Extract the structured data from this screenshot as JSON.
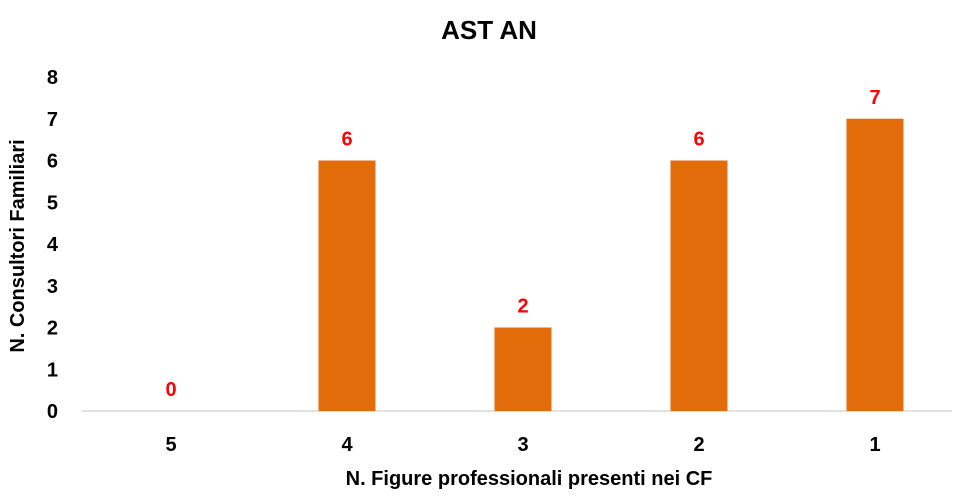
{
  "chart_data": {
    "type": "bar",
    "title": "AST AN",
    "xlabel": "N. Figure professionali presenti nei CF",
    "ylabel": "N. Consultori Familiari",
    "categories": [
      "5",
      "4",
      "3",
      "2",
      "1"
    ],
    "values": [
      0,
      6,
      2,
      6,
      7
    ],
    "data_labels": [
      "0",
      "6",
      "2",
      "6",
      "7"
    ],
    "ylim": [
      0,
      8
    ],
    "yticks": [
      "0",
      "1",
      "2",
      "3",
      "4",
      "5",
      "6",
      "7",
      "8"
    ],
    "grid": false,
    "legend": "none",
    "colors": {
      "bar": "#E36C0A",
      "data_label": "#FF0000",
      "axis": "#D9D9D9"
    }
  }
}
